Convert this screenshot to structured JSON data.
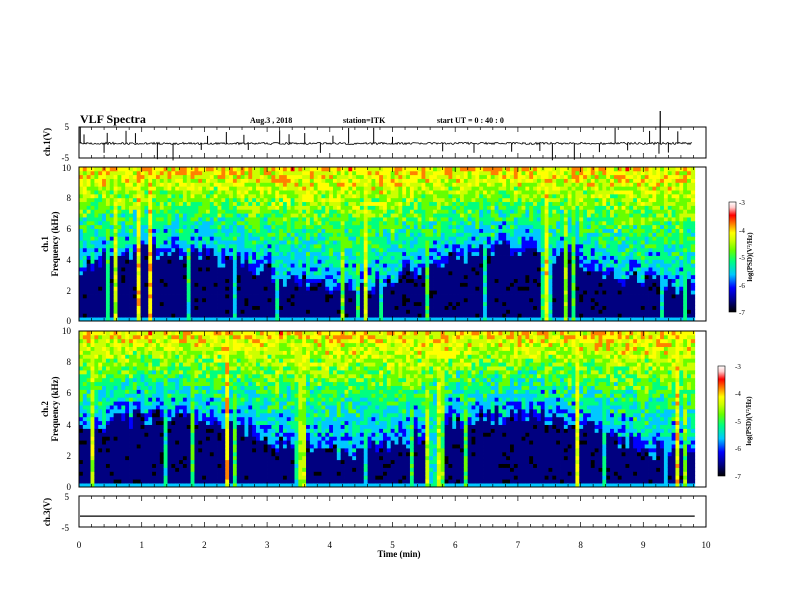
{
  "header": {
    "title": "VLF Spectra",
    "date": "Aug.3  , 2018",
    "station": "station=ITK",
    "start": "start  UT  =   0  : 40 : 0"
  },
  "colorbar": {
    "label": "log(PSD)(V²/Hz)",
    "ticks": [
      "-3",
      "-4",
      "-5",
      "-6",
      "-7"
    ],
    "colors": [
      "#000000",
      "#000080",
      "#0000ff",
      "#00c8ff",
      "#00ff80",
      "#66ff00",
      "#ccff00",
      "#ffff00",
      "#ff8000",
      "#ff0000",
      "#ffcccc",
      "#ffffff"
    ]
  },
  "chart_data": [
    {
      "type": "line",
      "ylabel": "ch.1(V)",
      "ylim": [
        -5,
        5
      ],
      "yticks": [
        "5",
        "-5"
      ],
      "xlim": [
        0,
        10
      ],
      "description_level": -0.3,
      "spikes_min": [
        0.02,
        0.08,
        0.4,
        0.45,
        0.75,
        0.9,
        1.25,
        1.5,
        1.95,
        2.05,
        2.35,
        2.63,
        2.7,
        3.2,
        3.35,
        3.6,
        3.85,
        4.05,
        4.3,
        4.7,
        5.0,
        5.8,
        6.3,
        6.9,
        7.35,
        7.55,
        7.9,
        8.3,
        8.55,
        8.75,
        9.1,
        9.25,
        9.4,
        9.55
      ]
    },
    {
      "type": "heatmap",
      "ylabel": "ch.1",
      "ylabel2": "Frequency  (kHz)",
      "yticks": [
        "0",
        "2",
        "4",
        "6",
        "8",
        "10"
      ],
      "ylim": [
        0,
        10
      ],
      "xlim": [
        0,
        10
      ],
      "data_end_min": 9.82,
      "zlim": [
        -7,
        -3
      ]
    },
    {
      "type": "heatmap",
      "ylabel": "ch.2",
      "ylabel2": "Frequency  (kHz)",
      "yticks": [
        "0",
        "2",
        "4",
        "6",
        "8",
        "10"
      ],
      "ylim": [
        0,
        10
      ],
      "xlim": [
        0,
        10
      ],
      "data_end_min": 9.82,
      "zlim": [
        -7,
        -3
      ]
    },
    {
      "type": "line",
      "ylabel": "ch.3(V)",
      "ylim": [
        -5,
        5
      ],
      "yticks": [
        "5",
        "-5"
      ],
      "xlim": [
        0,
        10
      ],
      "level": -1.5
    }
  ],
  "xaxis": {
    "label": "Time  (min)",
    "ticks": [
      "0",
      "1",
      "2",
      "3",
      "4",
      "5",
      "6",
      "7",
      "8",
      "9",
      "10"
    ]
  }
}
